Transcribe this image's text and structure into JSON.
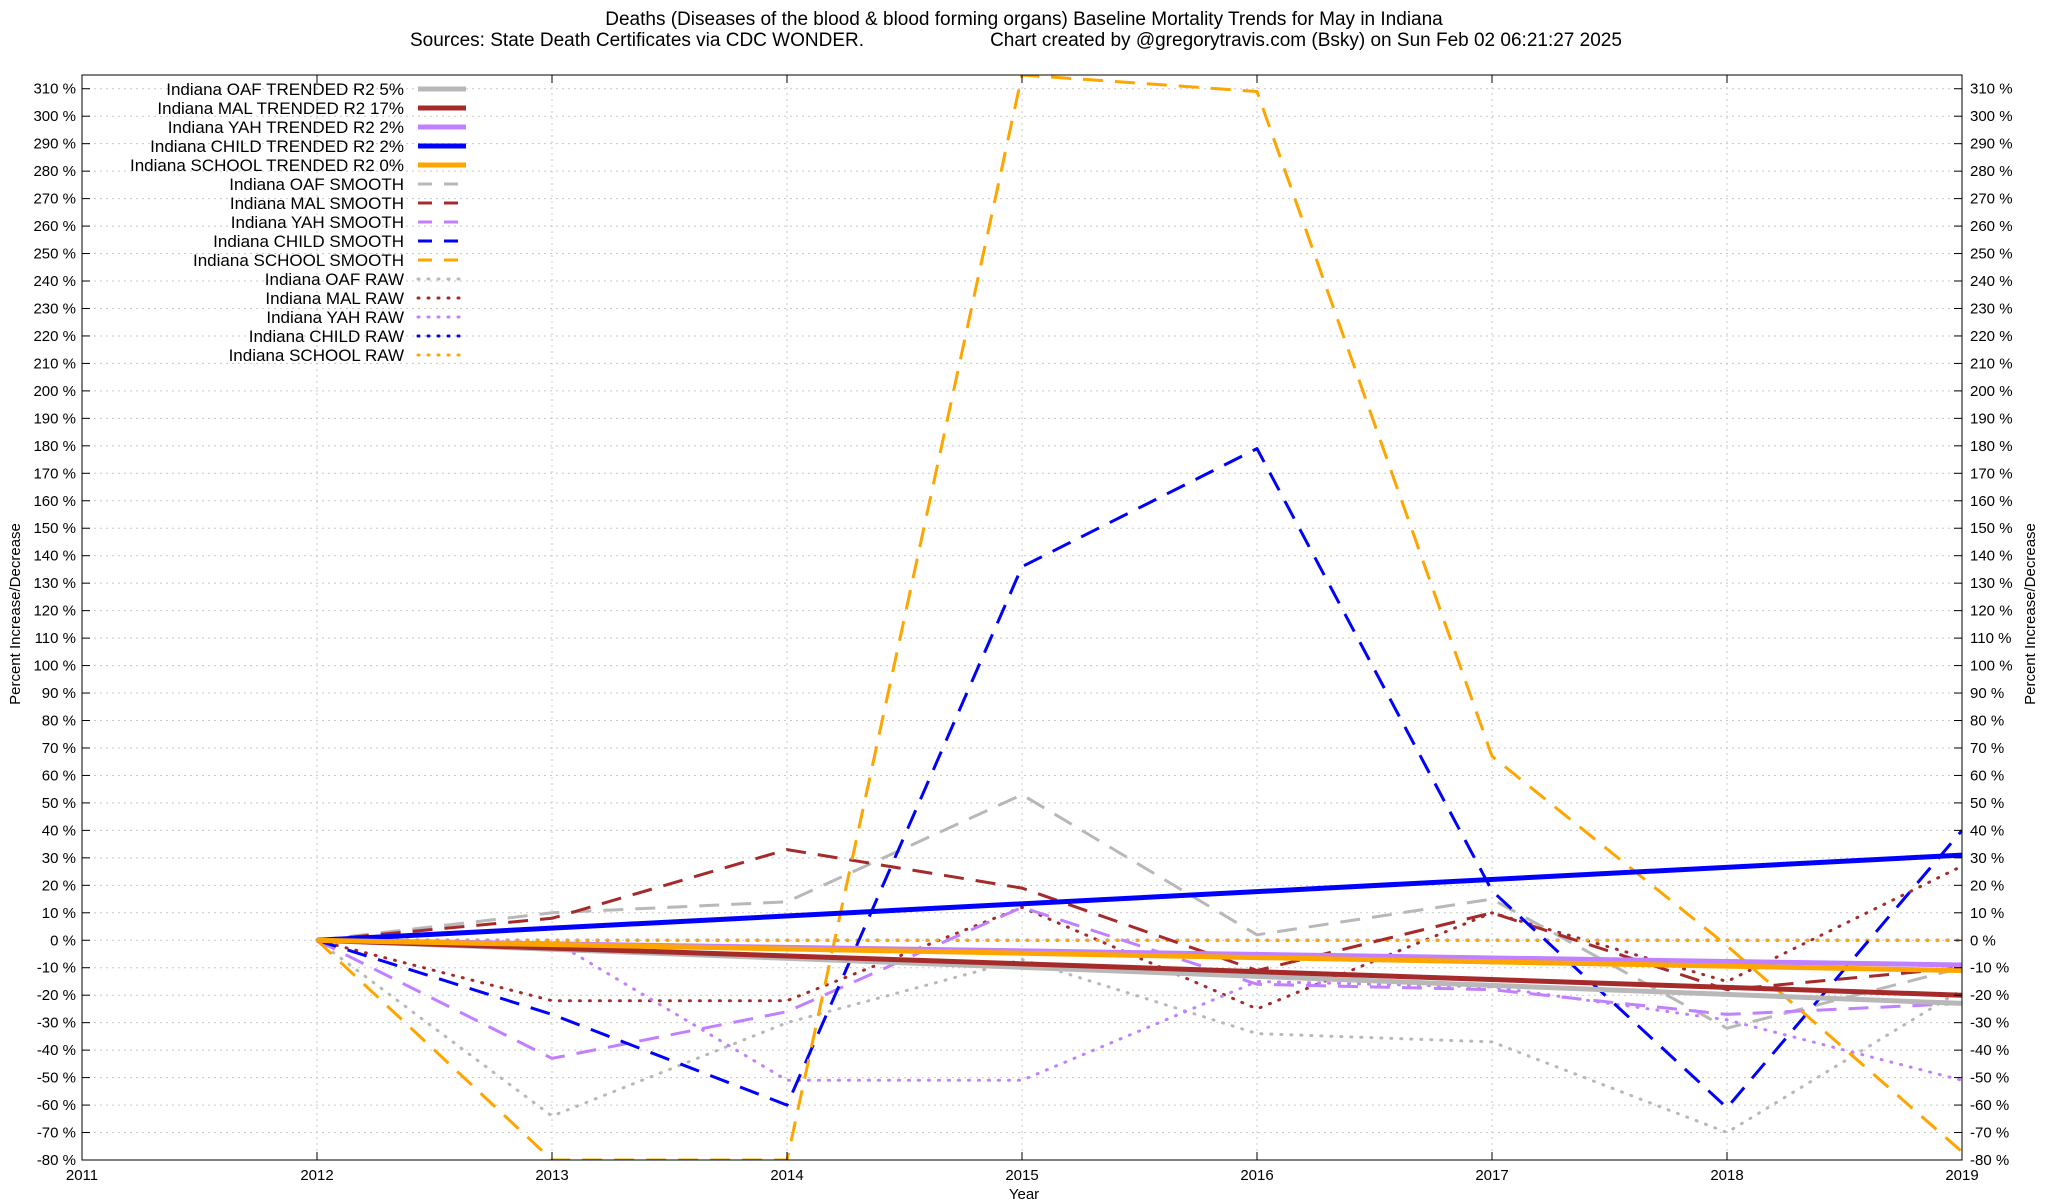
{
  "chart_data": {
    "type": "line",
    "title": "Deaths (Diseases of the blood & blood forming organs)  Baseline Mortality Trends for May in Indiana",
    "subtitle_left": "Sources: State Death Certificates via CDC WONDER.",
    "subtitle_right": "Chart created by @gregorytravis.com (Bsky) on Sun Feb 02 06:21:27 2025",
    "xlabel": "Year",
    "ylabel": "Percent Increase/Decrease",
    "ylabel_right": "Percent Increase/Decrease",
    "xlim": [
      2011,
      2019
    ],
    "ylim": [
      -80,
      315
    ],
    "x_ticks": [
      "2011",
      "2012",
      "2013",
      "2014",
      "2015",
      "2016",
      "2017",
      "2018",
      "2019"
    ],
    "y_ticks": [
      "310 %",
      "300 %",
      "290 %",
      "280 %",
      "270 %",
      "260 %",
      "250 %",
      "240 %",
      "230 %",
      "220 %",
      "210 %",
      "200 %",
      "190 %",
      "180 %",
      "170 %",
      "160 %",
      "150 %",
      "140 %",
      "130 %",
      "120 %",
      "110 %",
      "100 %",
      "90 %",
      "80 %",
      "70 %",
      "60 %",
      "50 %",
      "40 %",
      "30 %",
      "20 %",
      "10 %",
      "0 %",
      "-10 %",
      "-20 %",
      "-30 %",
      "-40 %",
      "-50 %",
      "-60 %",
      "-70 %",
      "-80 %"
    ],
    "grid": true,
    "legend_position": "top-left",
    "series": [
      {
        "name": "Indiana OAF TRENDED R2  5%",
        "style": "solid",
        "color": "#b8b8b8",
        "x": [
          2012,
          2019
        ],
        "y": [
          0,
          -23
        ]
      },
      {
        "name": "Indiana MAL TRENDED R2  17%",
        "style": "solid",
        "color": "#a52a2a",
        "x": [
          2012,
          2019
        ],
        "y": [
          0,
          -20
        ]
      },
      {
        "name": "Indiana YAH TRENDED R2  2%",
        "style": "solid",
        "color": "#c080ff",
        "x": [
          2012,
          2019
        ],
        "y": [
          0,
          -9
        ]
      },
      {
        "name": "Indiana CHILD TRENDED R2  2%",
        "style": "solid",
        "color": "#0000ff",
        "x": [
          2012,
          2019
        ],
        "y": [
          0,
          31
        ]
      },
      {
        "name": "Indiana SCHOOL TRENDED R2  0%",
        "style": "solid",
        "color": "#ffa500",
        "x": [
          2012,
          2019
        ],
        "y": [
          0,
          -11
        ]
      },
      {
        "name": "Indiana OAF SMOOTH",
        "style": "dashed",
        "color": "#b8b8b8",
        "x": [
          2012,
          2013,
          2014,
          2015,
          2016,
          2017,
          2018,
          2019
        ],
        "y": [
          0,
          10,
          14,
          53,
          2,
          15,
          -32,
          -10
        ]
      },
      {
        "name": "Indiana MAL SMOOTH",
        "style": "dashed",
        "color": "#a52a2a",
        "x": [
          2012,
          2013,
          2014,
          2015,
          2016,
          2017,
          2018,
          2019
        ],
        "y": [
          0,
          8,
          33,
          19,
          -11,
          10,
          -18,
          -10
        ]
      },
      {
        "name": "Indiana YAH SMOOTH",
        "style": "dashed",
        "color": "#c080ff",
        "x": [
          2012,
          2013,
          2014,
          2015,
          2016,
          2017,
          2018,
          2019
        ],
        "y": [
          0,
          -43,
          -26,
          12,
          -16,
          -18,
          -27,
          -23
        ]
      },
      {
        "name": "Indiana CHILD SMOOTH",
        "style": "dashed",
        "color": "#0000ff",
        "x": [
          2012,
          2013,
          2014,
          2015,
          2016,
          2017,
          2018,
          2019
        ],
        "y": [
          0,
          -27,
          -60,
          136,
          179,
          18,
          -61,
          40
        ]
      },
      {
        "name": "Indiana SCHOOL SMOOTH",
        "style": "dashed",
        "color": "#ffa500",
        "x": [
          2012,
          2013,
          2014,
          2015,
          2016,
          2017,
          2018,
          2019
        ],
        "y": [
          0,
          -80,
          -80,
          315,
          309,
          67,
          -2,
          -77
        ]
      },
      {
        "name": "Indiana OAF RAW",
        "style": "dotted",
        "color": "#b8b8b8",
        "x": [
          2012,
          2013,
          2014,
          2015,
          2016,
          2017,
          2018,
          2019
        ],
        "y": [
          0,
          -64,
          -30,
          -7,
          -34,
          -37,
          -70,
          -18
        ]
      },
      {
        "name": "Indiana MAL RAW",
        "style": "dotted",
        "color": "#a52a2a",
        "x": [
          2012,
          2013,
          2014,
          2015,
          2016,
          2017,
          2018,
          2019
        ],
        "y": [
          0,
          -22,
          -22,
          12,
          -25,
          10,
          -15,
          27
        ]
      },
      {
        "name": "Indiana YAH RAW",
        "style": "dotted",
        "color": "#c080ff",
        "x": [
          2012,
          2013,
          2014,
          2015,
          2016,
          2017,
          2018,
          2019
        ],
        "y": [
          0,
          0,
          -51,
          -51,
          -15,
          -17,
          -29,
          -51
        ]
      },
      {
        "name": "Indiana CHILD RAW",
        "style": "dotted",
        "color": "#0000ff",
        "x": [
          2012,
          2013,
          2014,
          2015,
          2016,
          2017,
          2018,
          2019
        ],
        "y": [
          0,
          0,
          0,
          0,
          0,
          0,
          0,
          0
        ]
      },
      {
        "name": "Indiana SCHOOL RAW",
        "style": "dotted",
        "color": "#ffa500",
        "x": [
          2012,
          2013,
          2014,
          2015,
          2016,
          2017,
          2018,
          2019
        ],
        "y": [
          0,
          0,
          0,
          0,
          0,
          0,
          0,
          0
        ]
      }
    ]
  }
}
